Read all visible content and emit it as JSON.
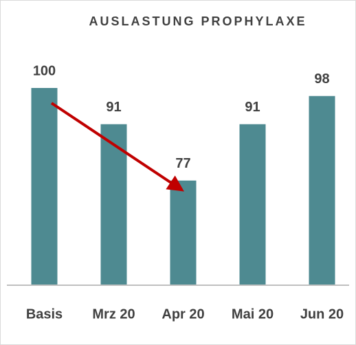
{
  "chart_data": {
    "type": "bar",
    "title": "AUSLASTUNG PROPHYLAXE",
    "categories": [
      "Basis",
      "Mrz 20",
      "Apr 20",
      "Mai 20",
      "Jun 20"
    ],
    "values": [
      100,
      91,
      77,
      91,
      98
    ],
    "color": "#4e8a91",
    "ylim": [
      51,
      100
    ]
  }
}
